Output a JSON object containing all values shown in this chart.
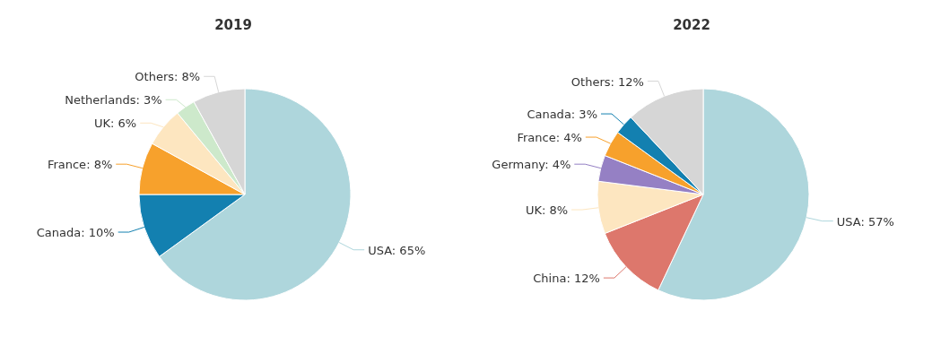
{
  "chart_data": [
    {
      "type": "pie",
      "title": "2019",
      "categories": [
        "USA",
        "Canada",
        "France",
        "UK",
        "Netherlands",
        "Others"
      ],
      "values": [
        65,
        10,
        8,
        6,
        3,
        8
      ],
      "colors": [
        "#aed6dc",
        "#1380b0",
        "#f7a12c",
        "#fde6c0",
        "#cde9cb",
        "#d6d6d6"
      ],
      "value_labels": [
        ": 65%",
        ": 10%",
        ": 8%",
        ": 6%",
        ": 3%",
        ": 8%"
      ]
    },
    {
      "type": "pie",
      "title": "2022",
      "categories": [
        "USA",
        "China",
        "UK",
        "Germany",
        "France",
        "Canada",
        "Others"
      ],
      "values": [
        57,
        12,
        8,
        4,
        4,
        3,
        12
      ],
      "colors": [
        "#aed6dc",
        "#dd776c",
        "#fde6c0",
        "#9580c4",
        "#f7a12c",
        "#1380b0",
        "#d6d6d6"
      ],
      "value_labels": [
        ": 57%",
        ": 12%",
        ": 8%",
        ": 4%",
        ": 4%",
        ": 3%",
        ": 12%"
      ]
    }
  ]
}
